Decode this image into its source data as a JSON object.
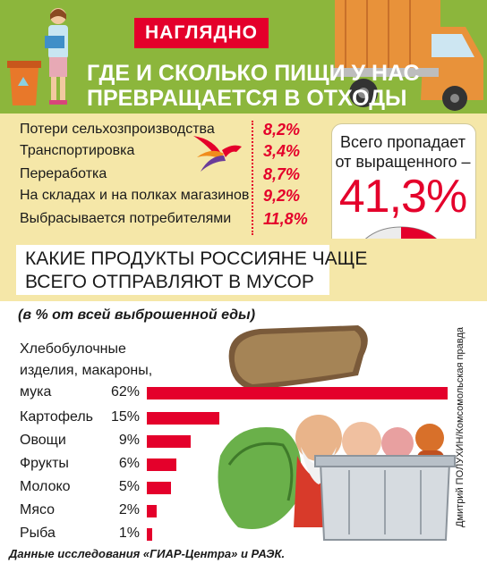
{
  "header": {
    "badge": "НАГЛЯДНО",
    "title_line1": "ГДЕ И СКОЛЬКО ПИЩИ У НАС",
    "title_line2": "ПРЕВРАЩАЕТСЯ В ОТХОДЫ"
  },
  "losses": [
    {
      "label": "Потери сельхозпроизводства",
      "value": "8,2%"
    },
    {
      "label": "Транспортировка",
      "value": "3,4%"
    },
    {
      "label": "Переработка",
      "value": "8,7%"
    },
    {
      "label": "На складах и на полках магазинов",
      "value": "9,2%"
    },
    {
      "label": "Выбрасывается потребителями",
      "value": "11,8%"
    }
  ],
  "total": {
    "text_line1": "Всего пропадает",
    "text_line2": "от выращенного –",
    "value": "41,3%",
    "fraction": 0.413
  },
  "section2": {
    "title_line1": "КАКИЕ ПРОДУКТЫ РОССИЯНЕ ЧАЩЕ",
    "title_line2": "ВСЕГО ОТПРАВЛЯЮТ В МУСОР",
    "note": "(в % от всей выброшенной еды)"
  },
  "chart_data": {
    "type": "bar",
    "categories": [
      "Хлебобулочные изделия, макароны, мука",
      "Картофель",
      "Овощи",
      "Фрукты",
      "Молоко",
      "Мясо",
      "Рыба"
    ],
    "category_lines": [
      [
        "Хлебобулочные",
        "изделия, макароны,",
        "мука"
      ],
      [
        "Картофель"
      ],
      [
        "Овощи"
      ],
      [
        "Фрукты"
      ],
      [
        "Молоко"
      ],
      [
        "Мясо"
      ],
      [
        "Рыба"
      ]
    ],
    "values": [
      62,
      15,
      9,
      6,
      5,
      2,
      1
    ],
    "value_labels": [
      "62%",
      "15%",
      "9%",
      "6%",
      "5%",
      "2%",
      "1%"
    ],
    "title": "",
    "xlabel": "",
    "ylabel": "",
    "color": "#e4002b"
  },
  "credit": "Дмитрий ПОЛУХИН/Комсомольская правда",
  "source": "Данные исследования «ГИАР-Центра» и РАЭК.",
  "colors": {
    "accent": "#e4002b",
    "green": "#8cb63c",
    "cream": "#f5e7a8"
  },
  "icons": [
    "woman-with-bin-icon",
    "trash-bin-icon",
    "garbage-truck-icon",
    "bird-logo-icon",
    "bread-slice-icon",
    "toys-icon",
    "dumpster-icon",
    "cabbage-icon"
  ]
}
